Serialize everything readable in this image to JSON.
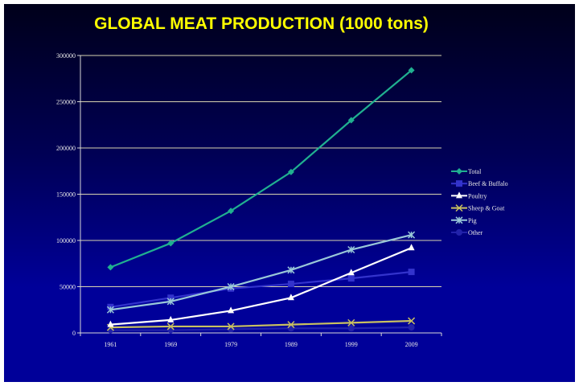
{
  "chart_data": {
    "type": "line",
    "title": "GLOBAL MEAT PRODUCTION (1000 tons)",
    "xlabel": "",
    "ylabel": "",
    "categories": [
      "1961",
      "1969",
      "1979",
      "1989",
      "1999",
      "2009"
    ],
    "ylim": [
      0,
      300000
    ],
    "yticks": [
      "0",
      "50000",
      "100000",
      "150000",
      "200000",
      "250000",
      "300000"
    ],
    "grid": true,
    "legend_position": "right",
    "series": [
      {
        "name": "Total",
        "color": "#20b090",
        "marker": "diamond",
        "values": [
          71000,
          97000,
          132000,
          174000,
          230000,
          284000
        ]
      },
      {
        "name": "Beef & Buffalo",
        "color": "#3333cc",
        "marker": "square",
        "values": [
          28000,
          38000,
          48000,
          53000,
          59000,
          66000
        ]
      },
      {
        "name": "Poultry",
        "color": "#ffffff",
        "marker": "triangle",
        "values": [
          9000,
          14000,
          24000,
          38000,
          65000,
          92000
        ]
      },
      {
        "name": "Sheep & Goat",
        "color": "#c8c060",
        "marker": "x",
        "values": [
          6000,
          7000,
          7000,
          9000,
          11000,
          13000
        ]
      },
      {
        "name": "Pig",
        "color": "#99c8d8",
        "marker": "star",
        "values": [
          25000,
          34000,
          50000,
          68000,
          90000,
          106000
        ]
      },
      {
        "name": "Other",
        "color": "#2222aa",
        "marker": "circle",
        "values": [
          3000,
          3000,
          4000,
          5000,
          5000,
          6000
        ]
      }
    ]
  }
}
